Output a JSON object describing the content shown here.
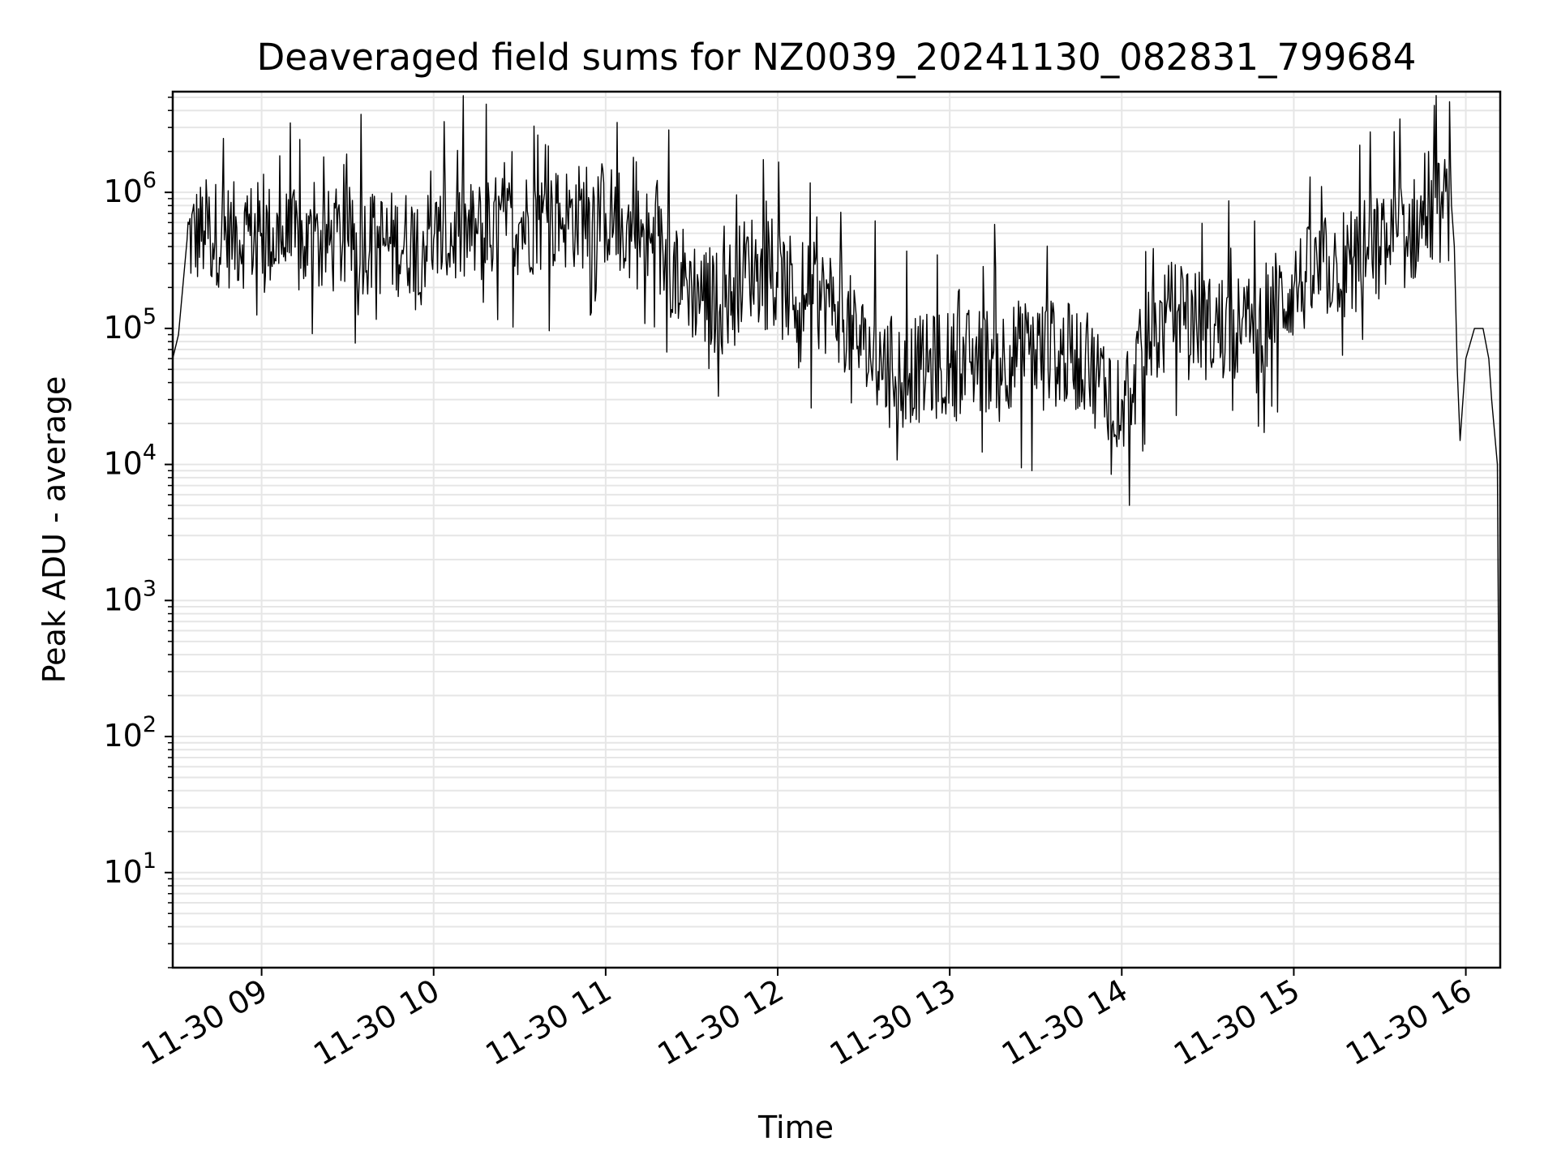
{
  "chart_data": {
    "type": "line",
    "title": "Deaveraged field sums for NZ0039_20241130_082831_799684",
    "xlabel": "Time",
    "ylabel": "Peak ADU - average",
    "yscale": "log",
    "ylim": [
      2,
      5500000
    ],
    "xlim": [
      "2024-11-30 08:29",
      "2024-11-30 16:12"
    ],
    "grid": true,
    "x_tick_labels": [
      "11-30 09",
      "11-30 10",
      "11-30 11",
      "11-30 12",
      "11-30 13",
      "11-30 14",
      "11-30 15",
      "11-30 16"
    ],
    "y_tick_labels": [
      {
        "base": "10",
        "exp": "1"
      },
      {
        "base": "10",
        "exp": "2"
      },
      {
        "base": "10",
        "exp": "3"
      },
      {
        "base": "10",
        "exp": "4"
      },
      {
        "base": "10",
        "exp": "5"
      },
      {
        "base": "10",
        "exp": "6"
      }
    ],
    "series": [
      {
        "color": "#000000",
        "x": [
          "2024-11-30 08:29",
          "2024-11-30 08:31",
          "2024-11-30 08:34",
          "2024-11-30 08:40",
          "2024-11-30 08:50",
          "2024-11-30 09:00",
          "2024-11-30 09:15",
          "2024-11-30 09:30",
          "2024-11-30 09:45",
          "2024-11-30 10:00",
          "2024-11-30 10:15",
          "2024-11-30 10:30",
          "2024-11-30 10:45",
          "2024-11-30 11:00",
          "2024-11-30 11:10",
          "2024-11-30 11:20",
          "2024-11-30 11:30",
          "2024-11-30 11:40",
          "2024-11-30 11:50",
          "2024-11-30 12:00",
          "2024-11-30 12:10",
          "2024-11-30 12:20",
          "2024-11-30 12:30",
          "2024-11-30 12:40",
          "2024-11-30 12:50",
          "2024-11-30 13:00",
          "2024-11-30 13:15",
          "2024-11-30 13:30",
          "2024-11-30 13:45",
          "2024-11-30 14:00",
          "2024-11-30 14:10",
          "2024-11-30 14:20",
          "2024-11-30 14:30",
          "2024-11-30 14:45",
          "2024-11-30 15:00",
          "2024-11-30 15:15",
          "2024-11-30 15:30",
          "2024-11-30 15:40",
          "2024-11-30 15:50",
          "2024-11-30 15:55",
          "2024-11-30 15:56",
          "2024-11-30 15:57",
          "2024-11-30 15:58",
          "2024-11-30 16:00",
          "2024-11-30 16:03",
          "2024-11-30 16:06",
          "2024-11-30 16:08",
          "2024-11-30 16:09",
          "2024-11-30 16:11",
          "2024-11-30 16:12"
        ],
        "values": [
          60000,
          90000,
          450000,
          520000,
          480000,
          500000,
          400000,
          450000,
          420000,
          450000,
          500000,
          600000,
          650000,
          700000,
          500000,
          350000,
          200000,
          150000,
          300000,
          200000,
          180000,
          150000,
          70000,
          50000,
          50000,
          55000,
          60000,
          70000,
          60000,
          30000,
          80000,
          150000,
          100000,
          100000,
          200000,
          300000,
          400000,
          500000,
          700000,
          800000,
          400000,
          50000,
          15000,
          60000,
          100000,
          100000,
          60000,
          30000,
          10000,
          4
        ]
      }
    ]
  }
}
